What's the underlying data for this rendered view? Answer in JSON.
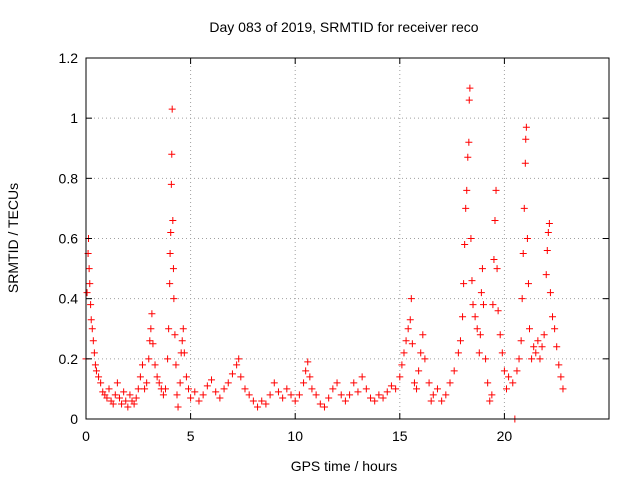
{
  "chart_data": {
    "type": "scatter",
    "title": "Day 083 of 2019, SRMTID for receiver reco",
    "xlabel": "GPS time / hours",
    "ylabel": "SRMTID / TECUs",
    "xlim": [
      0,
      25
    ],
    "ylim": [
      0,
      1.2
    ],
    "x_ticks": [
      0,
      5,
      10,
      15,
      20
    ],
    "x_tick_labels": [
      "0",
      "5",
      "10",
      "15",
      "20"
    ],
    "y_ticks": [
      0,
      0.2,
      0.4,
      0.6,
      0.8,
      1.0,
      1.2
    ],
    "y_tick_labels": [
      "0",
      "0.2",
      "0.4",
      "0.6",
      "0.8",
      "1",
      "1.2"
    ],
    "grid": true,
    "marker": "+",
    "color": "#ff0000",
    "series": [
      {
        "name": "SRMTID",
        "points": [
          [
            0.0,
            0.2
          ],
          [
            0.05,
            0.42
          ],
          [
            0.1,
            0.55
          ],
          [
            0.12,
            0.6
          ],
          [
            0.15,
            0.5
          ],
          [
            0.18,
            0.45
          ],
          [
            0.22,
            0.38
          ],
          [
            0.25,
            0.33
          ],
          [
            0.3,
            0.3
          ],
          [
            0.35,
            0.26
          ],
          [
            0.4,
            0.22
          ],
          [
            0.45,
            0.18
          ],
          [
            0.5,
            0.16
          ],
          [
            0.6,
            0.14
          ],
          [
            0.7,
            0.12
          ],
          [
            0.8,
            0.09
          ],
          [
            0.9,
            0.08
          ],
          [
            1.0,
            0.07
          ],
          [
            1.1,
            0.1
          ],
          [
            1.2,
            0.06
          ],
          [
            1.3,
            0.05
          ],
          [
            1.4,
            0.08
          ],
          [
            1.5,
            0.12
          ],
          [
            1.6,
            0.07
          ],
          [
            1.7,
            0.05
          ],
          [
            1.8,
            0.09
          ],
          [
            1.9,
            0.06
          ],
          [
            2.0,
            0.04
          ],
          [
            2.1,
            0.08
          ],
          [
            2.2,
            0.06
          ],
          [
            2.3,
            0.05
          ],
          [
            2.4,
            0.07
          ],
          [
            2.5,
            0.1
          ],
          [
            2.6,
            0.14
          ],
          [
            2.7,
            0.18
          ],
          [
            2.8,
            0.1
          ],
          [
            2.9,
            0.12
          ],
          [
            3.0,
            0.2
          ],
          [
            3.05,
            0.26
          ],
          [
            3.1,
            0.3
          ],
          [
            3.15,
            0.35
          ],
          [
            3.2,
            0.25
          ],
          [
            3.3,
            0.18
          ],
          [
            3.4,
            0.14
          ],
          [
            3.5,
            0.12
          ],
          [
            3.6,
            0.1
          ],
          [
            3.7,
            0.08
          ],
          [
            3.8,
            0.1
          ],
          [
            3.9,
            0.2
          ],
          [
            3.95,
            0.3
          ],
          [
            4.0,
            0.45
          ],
          [
            4.02,
            0.55
          ],
          [
            4.05,
            0.62
          ],
          [
            4.08,
            0.78
          ],
          [
            4.1,
            0.88
          ],
          [
            4.12,
            1.03
          ],
          [
            4.15,
            0.66
          ],
          [
            4.18,
            0.5
          ],
          [
            4.2,
            0.4
          ],
          [
            4.25,
            0.28
          ],
          [
            4.3,
            0.18
          ],
          [
            4.35,
            0.08
          ],
          [
            4.4,
            0.04
          ],
          [
            4.5,
            0.12
          ],
          [
            4.55,
            0.22
          ],
          [
            4.6,
            0.26
          ],
          [
            4.65,
            0.3
          ],
          [
            4.7,
            0.22
          ],
          [
            4.8,
            0.14
          ],
          [
            4.9,
            0.1
          ],
          [
            5.0,
            0.07
          ],
          [
            5.2,
            0.09
          ],
          [
            5.4,
            0.06
          ],
          [
            5.6,
            0.08
          ],
          [
            5.8,
            0.11
          ],
          [
            6.0,
            0.13
          ],
          [
            6.2,
            0.09
          ],
          [
            6.4,
            0.07
          ],
          [
            6.6,
            0.1
          ],
          [
            6.8,
            0.12
          ],
          [
            7.0,
            0.15
          ],
          [
            7.2,
            0.18
          ],
          [
            7.3,
            0.2
          ],
          [
            7.4,
            0.14
          ],
          [
            7.6,
            0.1
          ],
          [
            7.8,
            0.08
          ],
          [
            8.0,
            0.06
          ],
          [
            8.2,
            0.04
          ],
          [
            8.4,
            0.06
          ],
          [
            8.6,
            0.05
          ],
          [
            8.8,
            0.08
          ],
          [
            9.0,
            0.12
          ],
          [
            9.2,
            0.09
          ],
          [
            9.4,
            0.07
          ],
          [
            9.6,
            0.1
          ],
          [
            9.8,
            0.08
          ],
          [
            10.0,
            0.06
          ],
          [
            10.2,
            0.08
          ],
          [
            10.4,
            0.12
          ],
          [
            10.5,
            0.16
          ],
          [
            10.6,
            0.19
          ],
          [
            10.7,
            0.14
          ],
          [
            10.8,
            0.1
          ],
          [
            11.0,
            0.08
          ],
          [
            11.2,
            0.05
          ],
          [
            11.4,
            0.04
          ],
          [
            11.6,
            0.07
          ],
          [
            11.8,
            0.1
          ],
          [
            12.0,
            0.12
          ],
          [
            12.2,
            0.08
          ],
          [
            12.4,
            0.06
          ],
          [
            12.6,
            0.08
          ],
          [
            12.8,
            0.12
          ],
          [
            13.0,
            0.09
          ],
          [
            13.2,
            0.14
          ],
          [
            13.4,
            0.1
          ],
          [
            13.6,
            0.07
          ],
          [
            13.8,
            0.06
          ],
          [
            14.0,
            0.08
          ],
          [
            14.2,
            0.07
          ],
          [
            14.4,
            0.09
          ],
          [
            14.6,
            0.11
          ],
          [
            14.8,
            0.1
          ],
          [
            15.0,
            0.14
          ],
          [
            15.1,
            0.18
          ],
          [
            15.2,
            0.22
          ],
          [
            15.3,
            0.26
          ],
          [
            15.4,
            0.3
          ],
          [
            15.5,
            0.33
          ],
          [
            15.55,
            0.4
          ],
          [
            15.6,
            0.25
          ],
          [
            15.7,
            0.12
          ],
          [
            15.8,
            0.1
          ],
          [
            15.9,
            0.16
          ],
          [
            16.0,
            0.22
          ],
          [
            16.1,
            0.28
          ],
          [
            16.2,
            0.2
          ],
          [
            16.4,
            0.12
          ],
          [
            16.5,
            0.06
          ],
          [
            16.6,
            0.08
          ],
          [
            16.8,
            0.1
          ],
          [
            17.0,
            0.06
          ],
          [
            17.2,
            0.08
          ],
          [
            17.4,
            0.12
          ],
          [
            17.6,
            0.16
          ],
          [
            17.8,
            0.22
          ],
          [
            17.9,
            0.26
          ],
          [
            18.0,
            0.34
          ],
          [
            18.05,
            0.45
          ],
          [
            18.1,
            0.58
          ],
          [
            18.15,
            0.7
          ],
          [
            18.2,
            0.76
          ],
          [
            18.25,
            0.87
          ],
          [
            18.3,
            0.92
          ],
          [
            18.32,
            1.06
          ],
          [
            18.35,
            1.1
          ],
          [
            18.4,
            0.6
          ],
          [
            18.45,
            0.46
          ],
          [
            18.5,
            0.38
          ],
          [
            18.6,
            0.34
          ],
          [
            18.7,
            0.3
          ],
          [
            18.8,
            0.22
          ],
          [
            18.85,
            0.28
          ],
          [
            18.9,
            0.42
          ],
          [
            18.95,
            0.5
          ],
          [
            19.0,
            0.38
          ],
          [
            19.1,
            0.2
          ],
          [
            19.2,
            0.12
          ],
          [
            19.3,
            0.06
          ],
          [
            19.4,
            0.08
          ],
          [
            19.45,
            0.38
          ],
          [
            19.5,
            0.53
          ],
          [
            19.55,
            0.66
          ],
          [
            19.6,
            0.76
          ],
          [
            19.65,
            0.5
          ],
          [
            19.7,
            0.36
          ],
          [
            19.8,
            0.28
          ],
          [
            19.9,
            0.22
          ],
          [
            20.0,
            0.16
          ],
          [
            20.1,
            0.1
          ],
          [
            20.2,
            0.14
          ],
          [
            20.4,
            0.12
          ],
          [
            20.5,
            0.0
          ],
          [
            20.6,
            0.16
          ],
          [
            20.7,
            0.2
          ],
          [
            20.8,
            0.26
          ],
          [
            20.85,
            0.4
          ],
          [
            20.9,
            0.55
          ],
          [
            20.95,
            0.7
          ],
          [
            21.0,
            0.85
          ],
          [
            21.02,
            0.93
          ],
          [
            21.05,
            0.97
          ],
          [
            21.1,
            0.6
          ],
          [
            21.15,
            0.45
          ],
          [
            21.2,
            0.3
          ],
          [
            21.3,
            0.2
          ],
          [
            21.4,
            0.24
          ],
          [
            21.5,
            0.22
          ],
          [
            21.6,
            0.26
          ],
          [
            21.7,
            0.2
          ],
          [
            21.8,
            0.24
          ],
          [
            21.9,
            0.28
          ],
          [
            22.0,
            0.48
          ],
          [
            22.05,
            0.56
          ],
          [
            22.1,
            0.62
          ],
          [
            22.15,
            0.65
          ],
          [
            22.2,
            0.42
          ],
          [
            22.3,
            0.34
          ],
          [
            22.4,
            0.3
          ],
          [
            22.5,
            0.24
          ],
          [
            22.6,
            0.18
          ],
          [
            22.7,
            0.14
          ],
          [
            22.8,
            0.1
          ]
        ]
      }
    ]
  }
}
